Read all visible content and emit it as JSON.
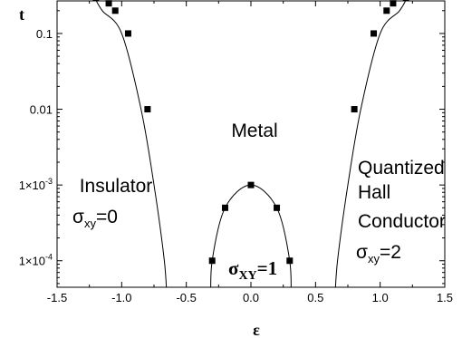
{
  "chart_data": {
    "type": "scatter",
    "xlabel": "ε",
    "ylabel": "t",
    "xlim": [
      -1.5,
      1.5
    ],
    "ylim_log10": [
      -4.35,
      -0.57
    ],
    "y_scale": "log",
    "grid": false,
    "x_ticks": [
      -1.5,
      -1.0,
      -0.5,
      0.0,
      0.5,
      1.0,
      1.5
    ],
    "x_tick_labels": [
      "-1.5",
      "-1.0",
      "-0.5",
      "0.0",
      "0.5",
      "1.0",
      "1.5"
    ],
    "y_ticks": [
      0.0001,
      0.001,
      0.01,
      0.1
    ],
    "y_tick_labels": [
      {
        "mant": "1×10",
        "exp": "-4"
      },
      {
        "mant": "1×10",
        "exp": "-3"
      },
      {
        "mant": "0.01",
        "exp": ""
      },
      {
        "mant": "0.1",
        "exp": ""
      }
    ],
    "series": [
      {
        "marker": "square",
        "points": [
          {
            "x": -1.2,
            "y": 0.3
          },
          {
            "x": -1.1,
            "y": 0.25
          },
          {
            "x": -1.05,
            "y": 0.2
          },
          {
            "x": -0.95,
            "y": 0.1
          },
          {
            "x": -0.8,
            "y": 0.01
          },
          {
            "x": 1.2,
            "y": 0.3
          },
          {
            "x": 1.1,
            "y": 0.25
          },
          {
            "x": 1.05,
            "y": 0.2
          },
          {
            "x": 0.95,
            "y": 0.1
          },
          {
            "x": 0.8,
            "y": 0.01
          },
          {
            "x": 0.0,
            "y": 0.001
          },
          {
            "x": -0.2,
            "y": 0.0005
          },
          {
            "x": 0.2,
            "y": 0.0005
          },
          {
            "x": -0.3,
            "y": 0.0001
          },
          {
            "x": 0.3,
            "y": 0.0001
          }
        ]
      }
    ],
    "curves": [
      {
        "points": [
          [
            -1.21,
            0.3
          ],
          [
            -1.15,
            0.2
          ],
          [
            -1.0,
            0.1
          ],
          [
            -0.85,
            0.01
          ],
          [
            -0.75,
            0.001
          ],
          [
            -0.67,
            0.0001
          ],
          [
            -0.65,
            3e-05
          ]
        ]
      },
      {
        "points": [
          [
            1.21,
            0.3
          ],
          [
            1.15,
            0.2
          ],
          [
            1.0,
            0.1
          ],
          [
            0.85,
            0.01
          ],
          [
            0.75,
            0.001
          ],
          [
            0.67,
            0.0001
          ],
          [
            0.65,
            3e-05
          ]
        ]
      },
      {
        "points": [
          [
            -0.31,
            3e-05
          ],
          [
            -0.3,
            0.0001
          ],
          [
            -0.2,
            0.0005
          ],
          [
            0.0,
            0.001
          ],
          [
            0.2,
            0.0005
          ],
          [
            0.3,
            0.0001
          ],
          [
            0.31,
            3e-05
          ]
        ]
      }
    ],
    "annotations": [
      {
        "id": "metal",
        "text": "Metal"
      },
      {
        "id": "insulator",
        "text": "Insulator",
        "sigma": "σ",
        "sub": "xy",
        "value": "=0"
      },
      {
        "id": "qhc",
        "lines": [
          "Quantized",
          "Hall",
          "Conductor"
        ],
        "sigma": "σ",
        "sub": "xy",
        "value": "=2"
      },
      {
        "id": "center",
        "sigma": "σ",
        "sub": "XY",
        "value": "=1"
      }
    ],
    "colors": {
      "ink": "#000000",
      "background": "#ffffff"
    }
  }
}
